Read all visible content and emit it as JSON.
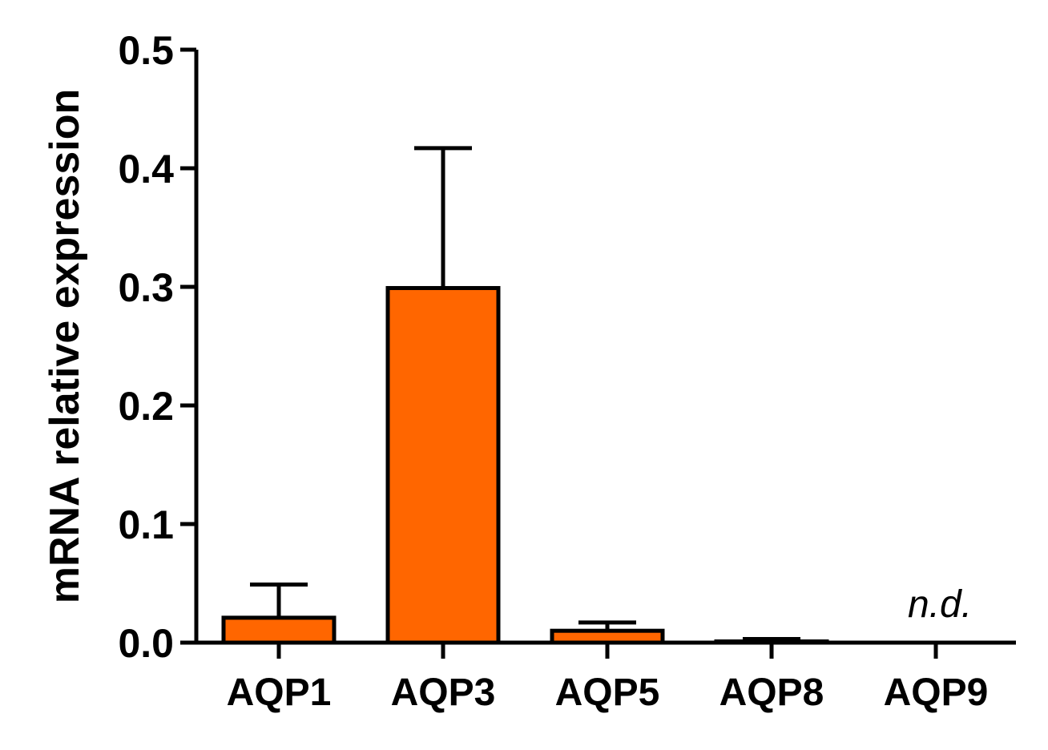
{
  "chart_data": {
    "type": "bar",
    "categories": [
      "AQP1",
      "AQP3",
      "AQP5",
      "AQP8",
      "AQP9"
    ],
    "values": [
      0.021,
      0.299,
      0.01,
      0.001,
      null
    ],
    "error_upper": [
      0.049,
      0.417,
      0.017,
      0.003,
      null
    ],
    "annotations": [
      {
        "category": "AQP9",
        "text": "n.d."
      }
    ],
    "title": "",
    "xlabel": "",
    "ylabel": "mRNA relative expression",
    "ylim": [
      0,
      0.5
    ],
    "yticks": [
      "0.0",
      "0.1",
      "0.2",
      "0.3",
      "0.4",
      "0.5"
    ],
    "grid": false,
    "bar_color": "#ff6600",
    "edge_color": "#000000"
  }
}
